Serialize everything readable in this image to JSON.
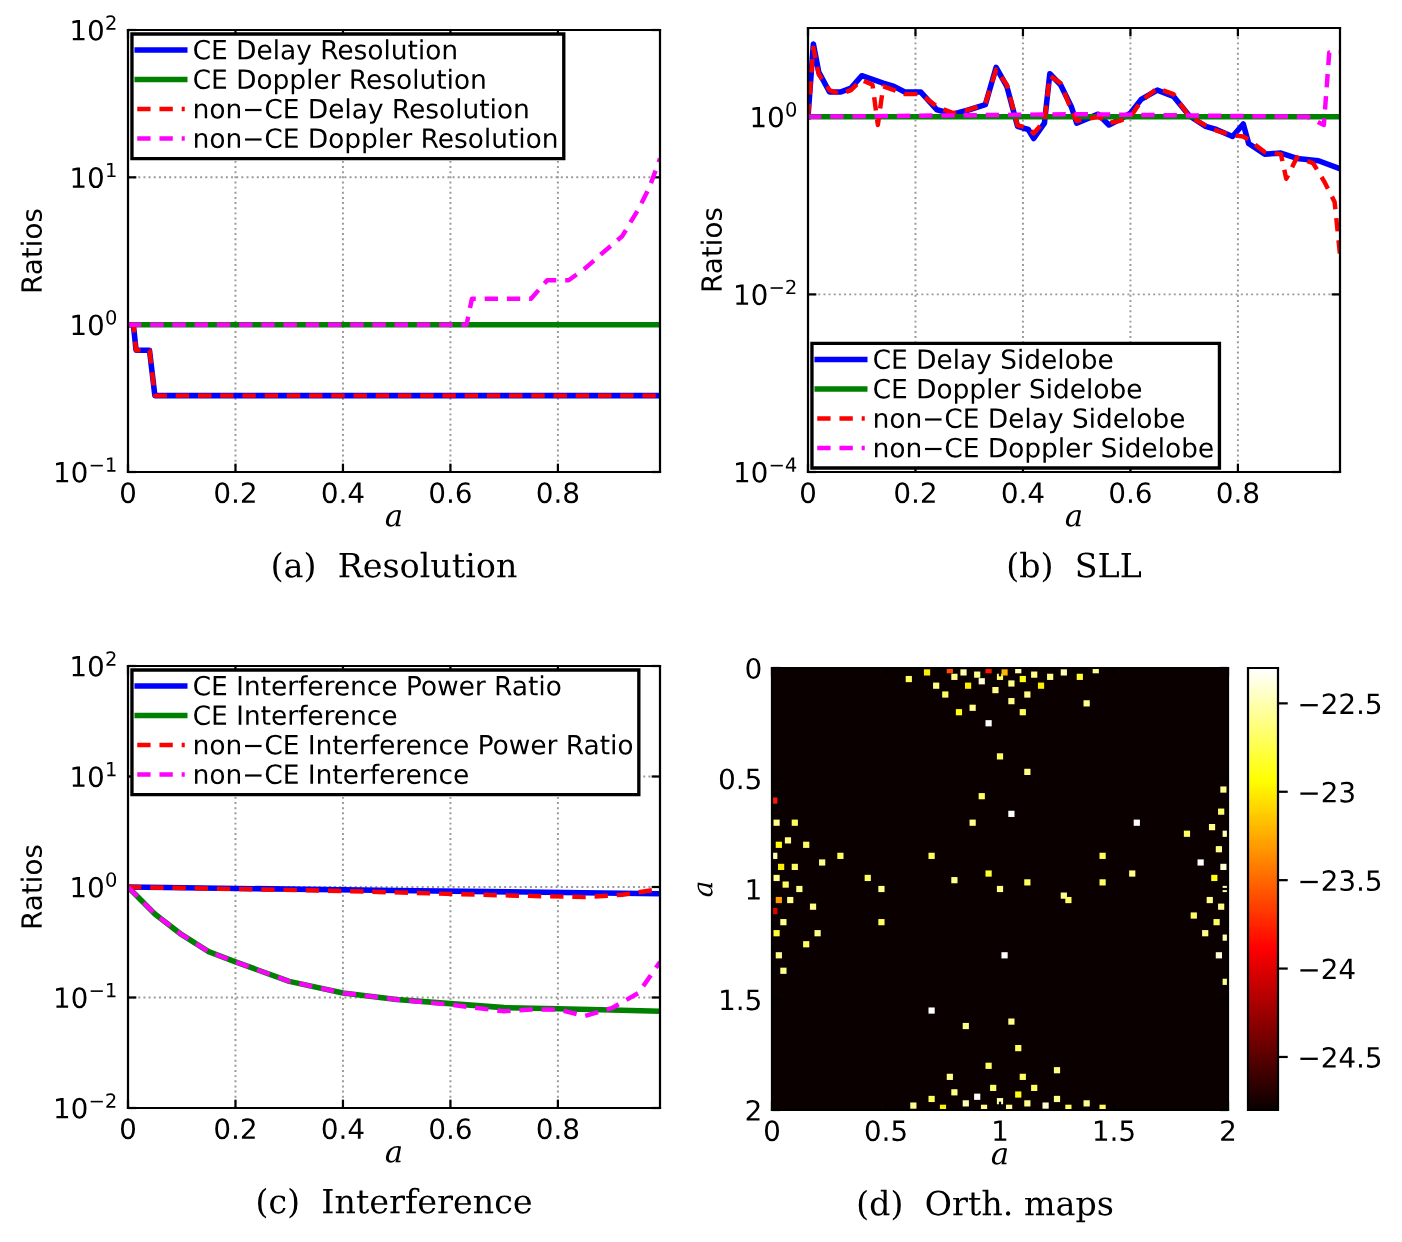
{
  "chart_data": [
    {
      "type": "line",
      "ylabel": "Ratios",
      "xlabel": "a",
      "annotations": [
        "(a)  Resolution"
      ],
      "log": "y",
      "grid": true,
      "legend": "top left",
      "xlim": [
        0,
        0.99
      ],
      "xticks": [
        0,
        0.2,
        0.4,
        0.6,
        0.8
      ],
      "ylim": [
        0.1,
        100
      ],
      "yticks": [
        {
          "value": 0.1,
          "label": "10$^{−1}$"
        },
        {
          "value": 1,
          "label": "10$^{0}$"
        },
        {
          "value": 10,
          "label": "10$^{1}$"
        },
        {
          "value": 100,
          "label": "10$^{2}$"
        }
      ],
      "series": [
        {
          "name": "CE Delay Resolution",
          "color": "#0000ff",
          "line_style": "solid",
          "x": [
            0,
            0.01,
            0.015,
            0.04,
            0.05,
            0.99
          ],
          "values": [
            1,
            1,
            0.67,
            0.67,
            0.33,
            0.33
          ]
        },
        {
          "name": "CE Doppler Resolution",
          "color": "#008000",
          "line_style": "solid",
          "x": [
            0,
            0.99
          ],
          "values": [
            1,
            1
          ]
        },
        {
          "name": "non−CE Delay Resolution",
          "color": "#ff0000",
          "line_style": "dashed",
          "x": [
            0,
            0.01,
            0.015,
            0.04,
            0.05,
            0.99
          ],
          "values": [
            1,
            1,
            0.67,
            0.67,
            0.33,
            0.33
          ]
        },
        {
          "name": "non−CE Doppler Resolution",
          "color": "#ff00ff",
          "line_style": "dashed",
          "x": [
            0,
            0.63,
            0.64,
            0.75,
            0.78,
            0.8,
            0.82,
            0.85,
            0.88,
            0.92,
            0.95,
            0.97,
            0.99
          ],
          "values": [
            1,
            1,
            1.5,
            1.5,
            2,
            2,
            2,
            2.4,
            3,
            4,
            6.1,
            8.5,
            13.4
          ]
        }
      ]
    },
    {
      "type": "line",
      "ylabel": "Ratios",
      "xlabel": "a",
      "annotations": [
        "(b)  SLL"
      ],
      "log": "y",
      "grid": true,
      "legend": "bottom left",
      "xlim": [
        0,
        0.99
      ],
      "xticks": [
        0,
        0.2,
        0.4,
        0.6,
        0.8
      ],
      "ylim": [
        0.0001,
        10
      ],
      "yticks": [
        {
          "value": 0.0001,
          "label": "10$^{−4}$"
        },
        {
          "value": 0.01,
          "label": "10$^{−2}$"
        },
        {
          "value": 1,
          "label": "10$^{0}$"
        }
      ],
      "series": [
        {
          "name": "CE Delay Sidelobe",
          "color": "#0000ff",
          "line_style": "solid",
          "x": [
            0,
            0.01,
            0.02,
            0.04,
            0.06,
            0.08,
            0.1,
            0.14,
            0.16,
            0.18,
            0.21,
            0.24,
            0.27,
            0.3,
            0.33,
            0.35,
            0.37,
            0.39,
            0.41,
            0.42,
            0.44,
            0.45,
            0.47,
            0.49,
            0.5,
            0.54,
            0.56,
            0.58,
            0.6,
            0.62,
            0.65,
            0.68,
            0.71,
            0.74,
            0.76,
            0.79,
            0.81,
            0.82,
            0.85,
            0.88,
            0.91,
            0.95,
            0.99
          ],
          "values": [
            1,
            6.6,
            3.2,
            1.9,
            1.9,
            2.1,
            2.9,
            2.4,
            2.2,
            1.9,
            1.9,
            1.2,
            1.07,
            1.2,
            1.37,
            3.6,
            2.2,
            0.78,
            0.72,
            0.57,
            0.85,
            3.05,
            2.3,
            1.3,
            0.85,
            1.07,
            0.81,
            0.93,
            1.1,
            1.57,
            2.0,
            1.7,
            1.02,
            0.78,
            0.72,
            0.6,
            0.83,
            0.5,
            0.38,
            0.39,
            0.34,
            0.32,
            0.26
          ]
        },
        {
          "name": "CE Doppler Sidelobe",
          "color": "#008000",
          "line_style": "solid",
          "x": [
            0,
            0.99
          ],
          "values": [
            1,
            1
          ]
        },
        {
          "name": "non−CE Delay Sidelobe",
          "color": "#ff0000",
          "line_style": "dashed",
          "x": [
            0,
            0.01,
            0.02,
            0.04,
            0.06,
            0.08,
            0.1,
            0.12,
            0.13,
            0.14,
            0.16,
            0.18,
            0.21,
            0.24,
            0.27,
            0.3,
            0.33,
            0.35,
            0.37,
            0.39,
            0.41,
            0.42,
            0.44,
            0.45,
            0.47,
            0.49,
            0.5,
            0.54,
            0.56,
            0.58,
            0.6,
            0.62,
            0.65,
            0.68,
            0.71,
            0.74,
            0.76,
            0.79,
            0.81,
            0.82,
            0.85,
            0.88,
            0.89,
            0.91,
            0.94,
            0.96,
            0.98,
            0.99
          ],
          "values": [
            1,
            6.0,
            3.0,
            2.0,
            1.8,
            2.0,
            2.6,
            2.3,
            0.81,
            2.2,
            2.0,
            1.8,
            1.8,
            1.3,
            1.1,
            1.2,
            1.4,
            3.4,
            2.3,
            0.8,
            0.75,
            0.65,
            0.9,
            2.9,
            2.4,
            1.2,
            0.9,
            1.0,
            0.85,
            0.9,
            1.0,
            1.5,
            2.1,
            1.8,
            1.0,
            0.8,
            0.7,
            0.62,
            0.6,
            0.55,
            0.4,
            0.38,
            0.2,
            0.35,
            0.3,
            0.19,
            0.11,
            0.028
          ]
        },
        {
          "name": "non−CE Doppler Sidelobe",
          "color": "#ff00ff",
          "line_style": "dashed",
          "x": [
            0,
            0.5,
            0.93,
            0.96,
            0.97,
            0.99
          ],
          "values": [
            1,
            1.07,
            1.0,
            0.81,
            5.3,
            5.3
          ]
        }
      ]
    },
    {
      "type": "line",
      "ylabel": "Ratios",
      "xlabel": "a",
      "annotations": [
        "(c)  Interference"
      ],
      "log": "y",
      "grid": true,
      "legend": "top left",
      "xlim": [
        0,
        0.99
      ],
      "xticks": [
        0,
        0.2,
        0.4,
        0.6,
        0.8
      ],
      "ylim": [
        0.01,
        100
      ],
      "yticks": [
        {
          "value": 0.01,
          "label": "10$^{−2}$"
        },
        {
          "value": 0.1,
          "label": "10$^{−1}$"
        },
        {
          "value": 1,
          "label": "10$^{0}$"
        },
        {
          "value": 10,
          "label": "10$^{1}$"
        },
        {
          "value": 100,
          "label": "10$^{2}$"
        }
      ],
      "series": [
        {
          "name": "CE Interference Power Ratio",
          "color": "#0000ff",
          "line_style": "solid",
          "x": [
            0,
            0.5,
            0.99
          ],
          "values": [
            1,
            0.93,
            0.87
          ]
        },
        {
          "name": "CE Interference",
          "color": "#008000",
          "line_style": "solid",
          "x": [
            0,
            0.05,
            0.1,
            0.15,
            0.2,
            0.3,
            0.4,
            0.5,
            0.6,
            0.7,
            0.8,
            0.9,
            0.99
          ],
          "values": [
            1,
            0.57,
            0.37,
            0.26,
            0.21,
            0.14,
            0.11,
            0.096,
            0.088,
            0.081,
            0.079,
            0.077,
            0.075
          ]
        },
        {
          "name": "non−CE Interference Power Ratio",
          "color": "#ff0000",
          "line_style": "dashed",
          "x": [
            0,
            0.4,
            0.7,
            0.85,
            0.92,
            0.99
          ],
          "values": [
            1,
            0.92,
            0.84,
            0.81,
            0.85,
            0.96
          ]
        },
        {
          "name": "non−CE Interference",
          "color": "#ff00ff",
          "line_style": "dashed",
          "x": [
            0,
            0.05,
            0.1,
            0.15,
            0.2,
            0.3,
            0.4,
            0.5,
            0.6,
            0.7,
            0.75,
            0.8,
            0.85,
            0.9,
            0.95,
            0.99
          ],
          "values": [
            1,
            0.57,
            0.37,
            0.26,
            0.21,
            0.14,
            0.11,
            0.096,
            0.086,
            0.075,
            0.078,
            0.078,
            0.068,
            0.08,
            0.11,
            0.21
          ]
        }
      ]
    },
    {
      "type": "scatter",
      "ylabel": "a",
      "xlabel": "a",
      "annotations": [
        "(d)  Orth. maps"
      ],
      "xlim": [
        0,
        2
      ],
      "xticks": [
        0,
        0.5,
        1,
        1.5,
        2
      ],
      "ylim": [
        2,
        0
      ],
      "yticks": [
        0,
        0.5,
        1,
        1.5,
        2
      ],
      "clim": [
        -24.8,
        -22.3
      ],
      "cticks": [
        {
          "value": -24.5,
          "label": "−24.5"
        },
        {
          "value": -24,
          "label": "−24"
        },
        {
          "value": -23.5,
          "label": "−23.5"
        },
        {
          "value": -23,
          "label": "−23"
        },
        {
          "value": -22.5,
          "label": "−22.5"
        }
      ],
      "x": [
        0.6,
        0.68,
        0.72,
        0.78,
        0.8,
        0.84,
        0.86,
        0.9,
        0.92,
        0.95,
        0.98,
        1.0,
        1.02,
        1.05,
        1.08,
        1.1,
        1.12,
        1.15,
        1.18,
        1.22,
        1.28,
        1.35,
        1.42,
        0.88,
        0.95,
        1.1,
        1.38,
        0.82,
        1.05,
        0.76,
        1.0,
        1.12,
        0.92,
        1.05,
        0.88,
        0.42,
        0.48,
        0.7,
        0.8,
        0.95,
        1.0,
        1.12,
        1.28,
        1.45,
        1.6,
        1.58,
        1.45,
        0.22,
        0.3,
        0.18,
        0.48,
        1.02,
        1.05,
        1.08,
        0.85,
        0.7,
        1.3,
        0.2,
        0.15,
        0.05,
        0.01,
        0.02,
        0.03,
        0.01,
        0.04,
        0.02,
        0.06,
        0.03,
        0.01,
        0.05,
        0.02,
        0.08,
        0.1,
        0.12,
        0.07,
        0.15,
        0.03,
        0.1,
        1.98,
        1.97,
        1.99,
        1.96,
        1.98,
        1.94,
        1.99,
        1.97,
        1.95,
        1.99,
        1.96,
        1.92,
        1.88,
        1.85,
        1.9,
        1.82,
        1.99,
        1.93,
        0.62,
        0.7,
        0.75,
        0.8,
        0.85,
        0.9,
        0.93,
        0.97,
        1.0,
        1.04,
        1.08,
        1.12,
        1.15,
        1.2,
        1.25,
        1.3,
        1.38,
        1.45,
        0.78,
        1.1,
        1.25,
        0.95
      ],
      "values": [
        0.05,
        0.02,
        0.08,
        0.01,
        0.04,
        0.02,
        0.08,
        0.03,
        0.06,
        0.01,
        0.1,
        0.04,
        0.02,
        0.07,
        0.01,
        0.05,
        0.12,
        0.03,
        0.08,
        0.04,
        0.02,
        0.04,
        0.01,
        0.18,
        0.25,
        0.2,
        0.16,
        0.2,
        0.15,
        0.12,
        0.4,
        0.47,
        0.58,
        0.66,
        0.7,
        0.95,
        1.0,
        0.85,
        0.96,
        0.93,
        1.0,
        0.97,
        1.03,
        0.85,
        0.7,
        0.93,
        0.97,
        0.88,
        0.85,
        1.08,
        1.15,
        1.3,
        1.6,
        1.72,
        1.62,
        1.55,
        1.05,
        1.2,
        1.25,
        1.37,
        0.6,
        0.7,
        0.8,
        0.85,
        0.9,
        0.95,
        0.98,
        1.05,
        1.1,
        1.15,
        1.2,
        1.05,
        0.9,
        1.0,
        0.78,
        0.8,
        1.3,
        0.7,
        0.55,
        0.65,
        0.75,
        0.82,
        0.9,
        0.95,
        1.0,
        1.08,
        1.15,
        1.22,
        1.3,
        1.05,
        0.88,
        1.12,
        1.2,
        0.75,
        1.42,
        0.72,
        1.98,
        1.95,
        1.99,
        1.92,
        1.97,
        1.94,
        1.99,
        1.9,
        1.96,
        1.99,
        1.93,
        1.97,
        1.9,
        1.98,
        1.95,
        1.99,
        1.97,
        1.99,
        1.85,
        1.85,
        1.82,
        1.8
      ],
      "cvalues": [
        -22.7,
        -23.0,
        -22.6,
        -23.6,
        -22.6,
        -22.5,
        -23.0,
        -22.6,
        -22.4,
        -23.8,
        -22.6,
        -22.7,
        -23.2,
        -22.6,
        -22.5,
        -22.9,
        -22.6,
        -22.6,
        -23.0,
        -22.6,
        -22.5,
        -22.8,
        -22.6,
        -22.6,
        -22.3,
        -22.7,
        -22.6,
        -22.9,
        -22.6,
        -22.7,
        -22.7,
        -22.6,
        -22.7,
        -22.3,
        -22.6,
        -22.7,
        -22.6,
        -22.7,
        -22.6,
        -22.8,
        -22.6,
        -22.7,
        -22.6,
        -22.7,
        -22.3,
        -22.6,
        -22.7,
        -22.6,
        -22.7,
        -22.6,
        -22.7,
        -22.3,
        -22.6,
        -22.7,
        -22.6,
        -22.3,
        -22.7,
        -22.6,
        -22.7,
        -22.6,
        -23.8,
        -22.6,
        -22.9,
        -22.5,
        -23.0,
        -22.6,
        -22.7,
        -23.3,
        -24.0,
        -22.6,
        -22.8,
        -22.6,
        -22.7,
        -22.6,
        -22.6,
        -22.7,
        -22.6,
        -22.7,
        -22.6,
        -22.7,
        -22.5,
        -22.6,
        -22.4,
        -22.9,
        -22.5,
        -22.6,
        -22.7,
        -22.5,
        -22.4,
        -22.6,
        -22.3,
        -22.7,
        -22.6,
        -22.7,
        -22.6,
        -22.6,
        -22.6,
        -22.7,
        -23.0,
        -22.6,
        -22.5,
        -22.3,
        -22.6,
        -22.7,
        -22.5,
        -22.6,
        -22.9,
        -22.6,
        -22.7,
        -22.4,
        -22.6,
        -22.7,
        -22.6,
        -22.7,
        -22.6,
        -22.7,
        -22.6,
        -22.7
      ]
    }
  ]
}
